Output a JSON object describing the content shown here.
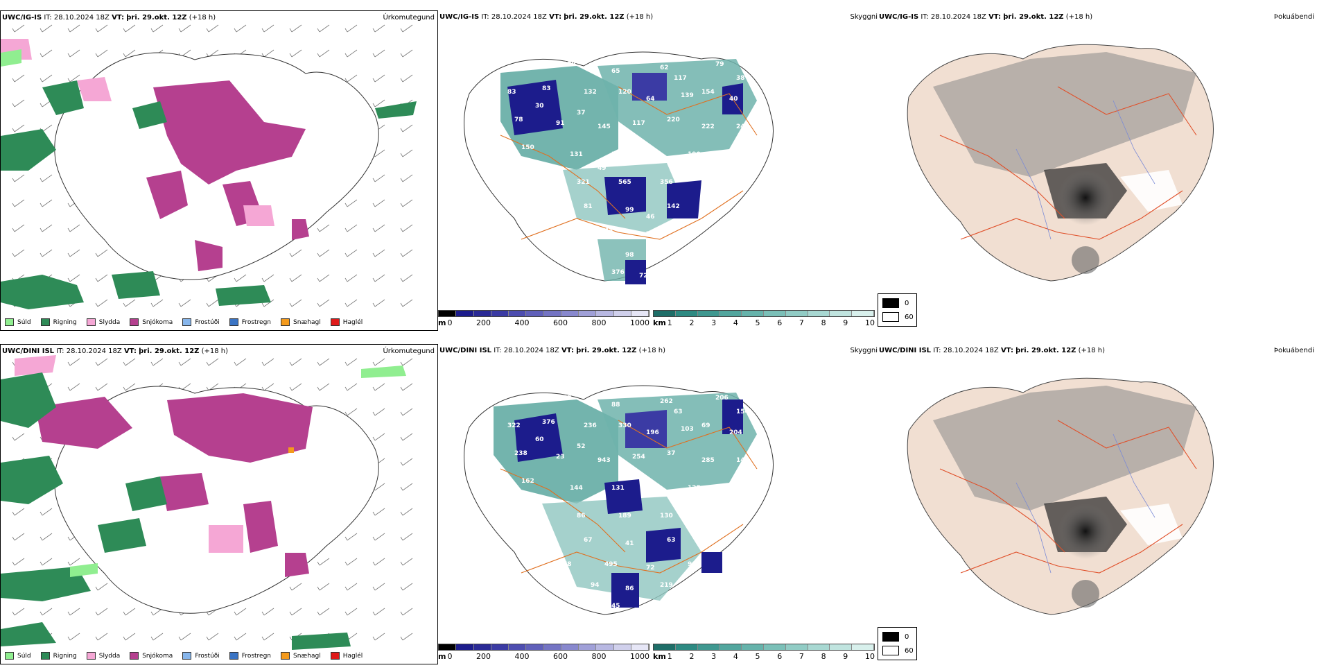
{
  "colors": {
    "sund": "#90ee90",
    "rigning": "#2e8b57",
    "slydda": "#f5a7d5",
    "snjokoma": "#b5408f",
    "frostudi": "#87b6ec",
    "frostregn": "#3a74c4",
    "snaehagl": "#f49a1c",
    "haglel": "#e01a1a",
    "cloud_low": "#1c1c8c",
    "cloud_mid": "#5a5ab4",
    "teal_dark": "#2d8a82",
    "teal_light": "#b9e0dc",
    "roads": "#e07020",
    "terrain": "#f1dfd2",
    "ocean": "#ffffff"
  },
  "rows": [
    {
      "model": "UWC/IG-IS",
      "it_label": "IT:",
      "it_value": "28.10.2024 18Z",
      "vt_label": "VT:",
      "vt_value": "þri. 29.okt. 12Z",
      "lead": "(+18 h)",
      "cloud_numbers": [
        "23",
        "129",
        "65",
        "62",
        "79",
        "38",
        "83",
        "83",
        "132",
        "120",
        "64",
        "139",
        "40",
        "78",
        "91",
        "145",
        "117",
        "220",
        "222",
        "240",
        "150",
        "131",
        "327",
        "104",
        "190",
        "159",
        "302",
        "321",
        "565",
        "356",
        "167",
        "116",
        "81",
        "99",
        "142",
        "232",
        "88",
        "44",
        "74",
        "115",
        "35",
        "56",
        "98",
        "77",
        "376",
        "72",
        "30",
        "117",
        "37",
        "154",
        "57",
        "46",
        "49",
        "128",
        "52"
      ]
    },
    {
      "model": "UWC/DINI ISL",
      "it_label": "IT:",
      "it_value": "28.10.2024 18Z",
      "vt_label": "VT:",
      "vt_value": "þri. 29.okt. 12Z",
      "lead": "(+18 h)",
      "cloud_numbers": [
        "148",
        "99",
        "88",
        "262",
        "206",
        "154",
        "322",
        "376",
        "236",
        "330",
        "196",
        "103",
        "204",
        "238",
        "23",
        "943",
        "254",
        "37",
        "285",
        "142",
        "162",
        "144",
        "131",
        "322",
        "125",
        "237",
        "338",
        "86",
        "189",
        "130",
        "111",
        "41",
        "67",
        "41",
        "63",
        "127",
        "78",
        "495",
        "72",
        "99",
        "64",
        "94",
        "86",
        "219",
        "45",
        "92",
        "60",
        "63",
        "52",
        "69",
        "47"
      ]
    }
  ],
  "panel_labels": {
    "precip_type": "Úrkomutegund",
    "visibility": "Skyggni",
    "fog": "Þokuábendi"
  },
  "precip_legend": [
    {
      "label": "Súld",
      "color_key": "sund"
    },
    {
      "label": "Rigning",
      "color_key": "rigning"
    },
    {
      "label": "Slydda",
      "color_key": "slydda"
    },
    {
      "label": "Snjókoma",
      "color_key": "snjokoma"
    },
    {
      "label": "Frostúði",
      "color_key": "frostudi"
    },
    {
      "label": "Frostregn",
      "color_key": "frostregn"
    },
    {
      "label": "Snæhagl",
      "color_key": "snaehagl"
    },
    {
      "label": "Haglél",
      "color_key": "haglel"
    }
  ],
  "cloud_base_scale": {
    "unit": "m",
    "ticks": [
      "0",
      "200",
      "400",
      "600",
      "800",
      "1000"
    ]
  },
  "visibility_scale": {
    "unit": "km",
    "ticks": [
      "1",
      "2",
      "3",
      "4",
      "5",
      "6",
      "7",
      "8",
      "9",
      "10"
    ]
  },
  "fog_legend": {
    "high": "0",
    "low": "60"
  }
}
